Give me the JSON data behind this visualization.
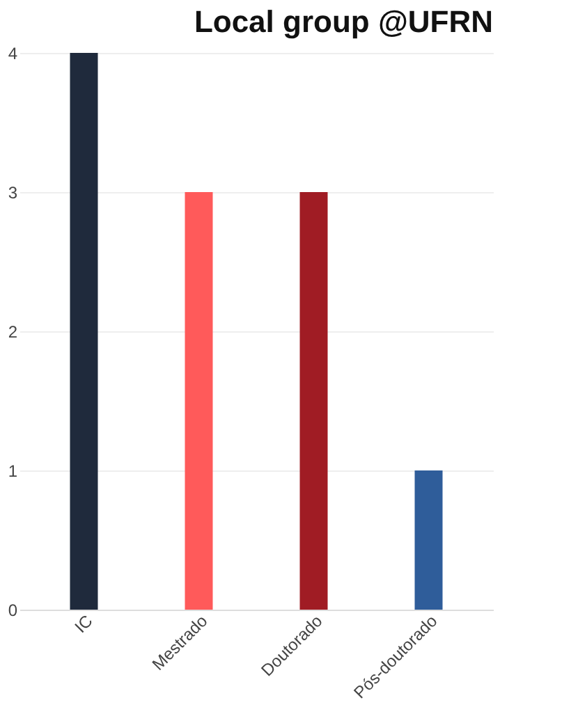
{
  "chart_data": {
    "type": "bar",
    "title": "Local group @UFRN",
    "categories": [
      "IC",
      "Mestrado",
      "Doutorado",
      "Pós-doutorado"
    ],
    "values": [
      4,
      3,
      3,
      1
    ],
    "colors": [
      "#1f2a3c",
      "#ff5a5a",
      "#a01c24",
      "#2f5d9a"
    ],
    "ylim": [
      0,
      4
    ],
    "yticks": [
      0,
      1,
      2,
      3,
      4
    ],
    "grid": "y"
  }
}
